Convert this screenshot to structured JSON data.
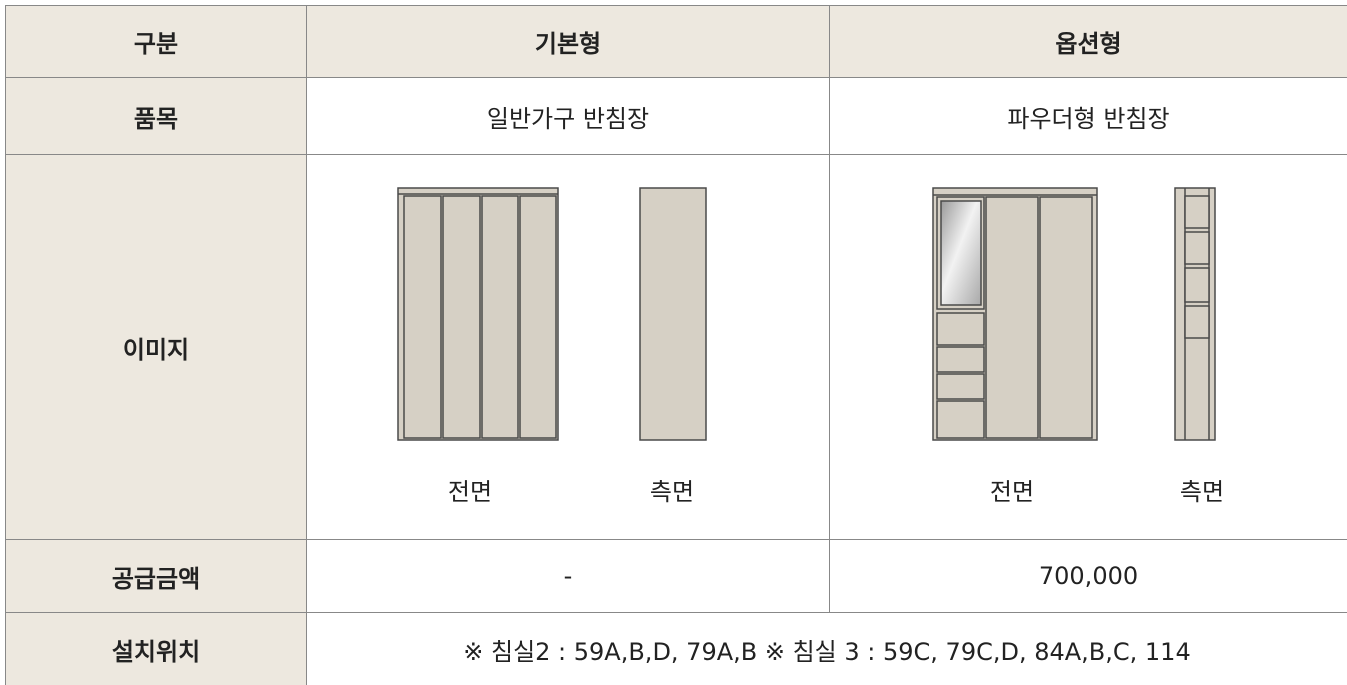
{
  "table": {
    "header": [
      "구분",
      "기본형",
      "옵션형"
    ],
    "rows": [
      {
        "label": "품목",
        "cells": [
          "일반가구 반침장",
          "파우더형 반침장"
        ]
      },
      {
        "label": "이미지",
        "cells": [
          [
            "전면",
            "측면"
          ],
          [
            "전면",
            "측면"
          ]
        ]
      },
      {
        "label": "공급금액",
        "cells": [
          "-",
          "700,000"
        ]
      },
      {
        "label": "설치위치",
        "cells": [
          "※ 침실2 : 59A,B,D, 79A,B  ※ 침실 3 : 59C, 79C,D, 84A,B,C, 114"
        ]
      }
    ]
  }
}
